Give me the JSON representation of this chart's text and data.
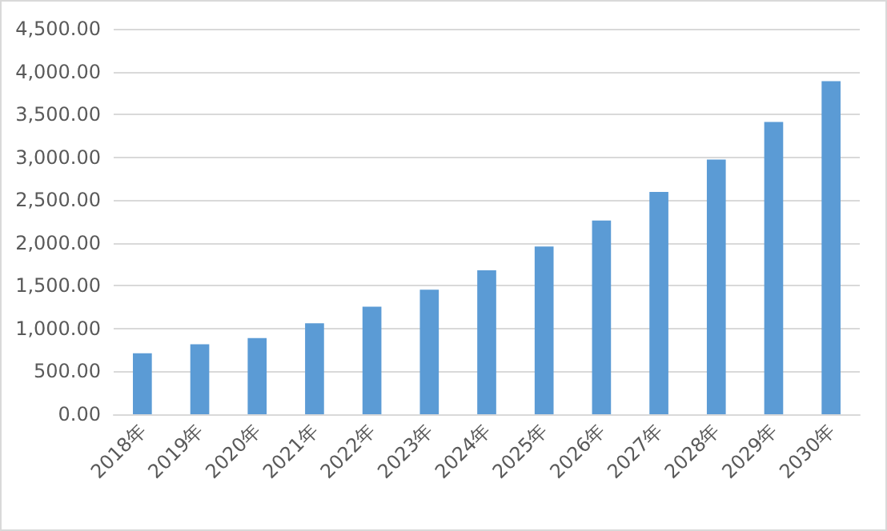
{
  "chart_data": {
    "type": "bar",
    "categories": [
      "2018年",
      "2019年",
      "2020年",
      "2021年",
      "2022年",
      "2023年",
      "2024年",
      "2025年",
      "2026年",
      "2027年",
      "2028年",
      "2029年",
      "2030年"
    ],
    "values": [
      711,
      816,
      890,
      1063,
      1255,
      1453,
      1681,
      1959,
      2262,
      2596,
      2973,
      3412,
      3888
    ],
    "color": "#5b9bd5",
    "ylim": [
      0,
      4500
    ],
    "yticks": [
      {
        "value": 0,
        "label": "0.00"
      },
      {
        "value": 500,
        "label": "500.00"
      },
      {
        "value": 1000,
        "label": "1,000.00"
      },
      {
        "value": 1500,
        "label": "1,500.00"
      },
      {
        "value": 2000,
        "label": "2,000.00"
      },
      {
        "value": 2500,
        "label": "2,500.00"
      },
      {
        "value": 3000,
        "label": "3,000.00"
      },
      {
        "value": 3500,
        "label": "3,500.00"
      },
      {
        "value": 4000,
        "label": "4,000.00"
      },
      {
        "value": 4500,
        "label": "4,500.00"
      }
    ],
    "grid": true
  }
}
